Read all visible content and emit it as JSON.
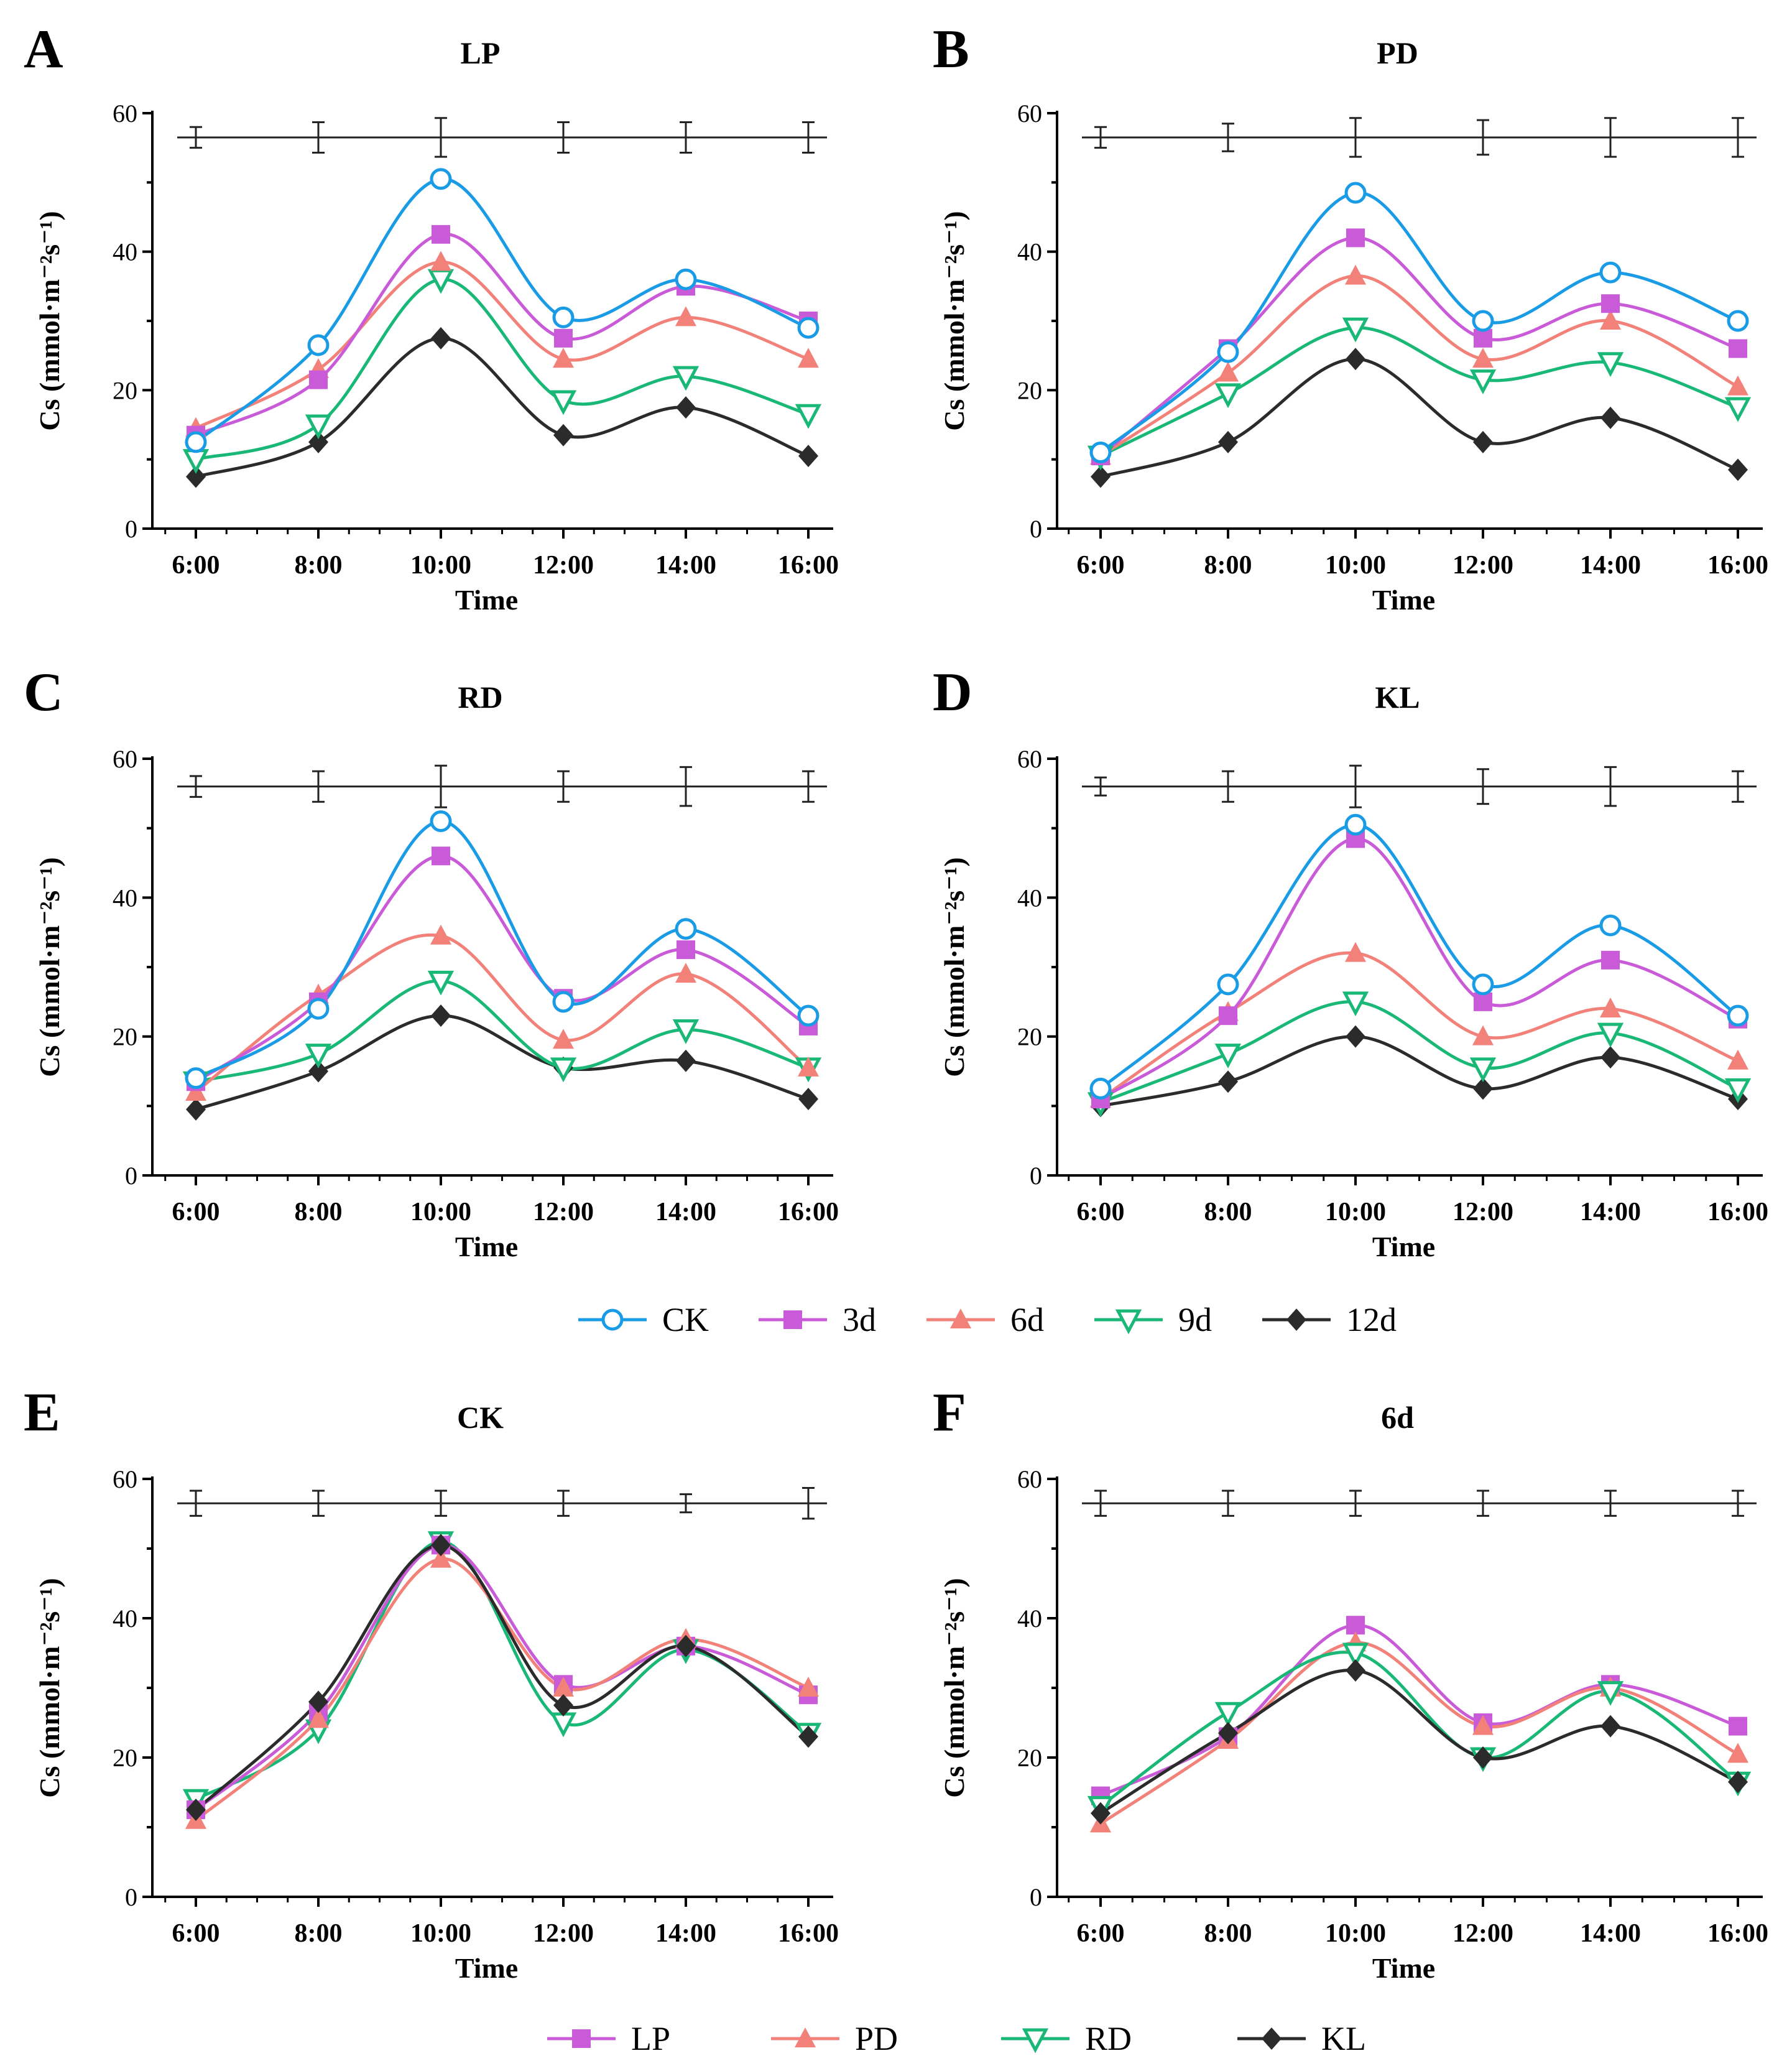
{
  "series_colors": {
    "CK": "#1a9be6",
    "3d": "#c95ad8",
    "6d": "#f2817a",
    "9d": "#19b877",
    "12d": "#2b2b2b",
    "LP": "#c95ad8",
    "PD": "#f2817a",
    "RD": "#19b877",
    "KL": "#2b2b2b",
    "axis": "#000000"
  },
  "series_markers": {
    "CK": "circle-open",
    "3d": "square",
    "6d": "triangle-up",
    "9d": "triangle-down-open",
    "12d": "diamond",
    "LP": "square",
    "PD": "triangle-up",
    "RD": "triangle-down-open",
    "KL": "diamond"
  },
  "legends": [
    {
      "entries": [
        "CK",
        "3d",
        "6d",
        "9d",
        "12d"
      ]
    },
    {
      "entries": [
        "LP",
        "PD",
        "RD",
        "KL"
      ]
    }
  ],
  "chart_data": [
    {
      "panel": "A",
      "type": "line",
      "title": "LP",
      "xlabel": "Time",
      "ylabel": "Cs (mmol·m⁻²s⁻¹)",
      "ylim": [
        0,
        60
      ],
      "yticks": [
        0,
        20,
        40,
        60
      ],
      "categories": [
        "6:00",
        "8:00",
        "10:00",
        "12:00",
        "14:00",
        "16:00"
      ],
      "series": [
        {
          "name": "CK",
          "values": [
            12.5,
            26.5,
            50.5,
            30.5,
            36.0,
            29.0
          ]
        },
        {
          "name": "3d",
          "values": [
            13.5,
            21.5,
            42.5,
            27.5,
            35.0,
            30.0
          ]
        },
        {
          "name": "6d",
          "values": [
            14.5,
            23.0,
            38.5,
            24.5,
            30.5,
            24.5
          ]
        },
        {
          "name": "9d",
          "values": [
            10.0,
            15.0,
            36.0,
            18.5,
            22.0,
            16.5
          ]
        },
        {
          "name": "12d",
          "values": [
            7.5,
            12.5,
            27.5,
            13.5,
            17.5,
            10.5
          ]
        }
      ],
      "error_bars": {
        "y": 56.5,
        "errors": [
          1.5,
          2.2,
          2.8,
          2.2,
          2.2,
          2.2
        ]
      }
    },
    {
      "panel": "B",
      "type": "line",
      "title": "PD",
      "xlabel": "Time",
      "ylabel": "Cs (mmol·m⁻²s⁻¹)",
      "ylim": [
        0,
        60
      ],
      "yticks": [
        0,
        20,
        40,
        60
      ],
      "categories": [
        "6:00",
        "8:00",
        "10:00",
        "12:00",
        "14:00",
        "16:00"
      ],
      "series": [
        {
          "name": "CK",
          "values": [
            11.0,
            25.5,
            48.5,
            30.0,
            37.0,
            30.0
          ]
        },
        {
          "name": "3d",
          "values": [
            10.5,
            26.0,
            42.0,
            27.5,
            32.5,
            26.0
          ]
        },
        {
          "name": "6d",
          "values": [
            10.5,
            22.5,
            36.5,
            24.5,
            30.0,
            20.5
          ]
        },
        {
          "name": "9d",
          "values": [
            10.5,
            19.5,
            29.0,
            21.5,
            24.0,
            17.5
          ]
        },
        {
          "name": "12d",
          "values": [
            7.5,
            12.5,
            24.5,
            12.5,
            16.0,
            8.5
          ]
        }
      ],
      "error_bars": {
        "y": 56.5,
        "errors": [
          1.5,
          2.0,
          2.8,
          2.5,
          2.8,
          2.8
        ]
      }
    },
    {
      "panel": "C",
      "type": "line",
      "title": "RD",
      "xlabel": "Time",
      "ylabel": "Cs (mmol·m⁻²s⁻¹)",
      "ylim": [
        0,
        60
      ],
      "yticks": [
        0,
        20,
        40,
        60
      ],
      "categories": [
        "6:00",
        "8:00",
        "10:00",
        "12:00",
        "14:00",
        "16:00"
      ],
      "series": [
        {
          "name": "CK",
          "values": [
            14.0,
            24.0,
            51.0,
            25.0,
            35.5,
            23.0
          ]
        },
        {
          "name": "3d",
          "values": [
            13.5,
            25.0,
            46.0,
            25.5,
            32.5,
            21.5
          ]
        },
        {
          "name": "6d",
          "values": [
            12.0,
            26.0,
            34.5,
            19.5,
            29.0,
            15.5
          ]
        },
        {
          "name": "9d",
          "values": [
            13.5,
            17.5,
            28.0,
            15.5,
            21.0,
            15.5
          ]
        },
        {
          "name": "12d",
          "values": [
            9.5,
            15.0,
            23.0,
            15.5,
            16.5,
            11.0
          ]
        }
      ],
      "error_bars": {
        "y": 56.0,
        "errors": [
          1.5,
          2.2,
          3.0,
          2.2,
          2.8,
          2.2
        ]
      }
    },
    {
      "panel": "D",
      "type": "line",
      "title": "KL",
      "xlabel": "Time",
      "ylabel": "Cs (mmol·m⁻²s⁻¹)",
      "ylim": [
        0,
        60
      ],
      "yticks": [
        0,
        20,
        40,
        60
      ],
      "categories": [
        "6:00",
        "8:00",
        "10:00",
        "12:00",
        "14:00",
        "16:00"
      ],
      "series": [
        {
          "name": "CK",
          "values": [
            12.5,
            27.5,
            50.5,
            27.5,
            36.0,
            23.0
          ]
        },
        {
          "name": "3d",
          "values": [
            11.0,
            23.0,
            48.5,
            25.0,
            31.0,
            22.5
          ]
        },
        {
          "name": "6d",
          "values": [
            11.0,
            23.5,
            32.0,
            20.0,
            24.0,
            16.5
          ]
        },
        {
          "name": "9d",
          "values": [
            10.5,
            17.5,
            25.0,
            15.5,
            20.5,
            12.5
          ]
        },
        {
          "name": "12d",
          "values": [
            10.0,
            13.5,
            20.0,
            12.5,
            17.0,
            11.0
          ]
        }
      ],
      "error_bars": {
        "y": 56.0,
        "errors": [
          1.3,
          2.2,
          3.0,
          2.5,
          2.8,
          2.2
        ]
      }
    },
    {
      "panel": "E",
      "type": "line",
      "title": "CK",
      "xlabel": "Time",
      "ylabel": "Cs (mmol·m⁻²s⁻¹)",
      "ylim": [
        0,
        60
      ],
      "yticks": [
        0,
        20,
        40,
        60
      ],
      "categories": [
        "6:00",
        "8:00",
        "10:00",
        "12:00",
        "14:00",
        "16:00"
      ],
      "series": [
        {
          "name": "KL",
          "values": [
            12.5,
            28.0,
            50.5,
            27.5,
            36.0,
            23.0
          ]
        },
        {
          "name": "PD",
          "values": [
            11.0,
            25.5,
            48.5,
            30.0,
            37.0,
            30.0
          ]
        },
        {
          "name": "LP",
          "values": [
            12.5,
            26.5,
            50.5,
            30.5,
            36.0,
            29.0
          ]
        },
        {
          "name": "RD",
          "values": [
            14.0,
            24.0,
            51.0,
            25.0,
            35.5,
            23.5
          ]
        }
      ],
      "error_bars": {
        "y": 56.5,
        "errors": [
          1.8,
          1.8,
          1.8,
          1.8,
          1.3,
          2.2
        ]
      }
    },
    {
      "panel": "F",
      "type": "line",
      "title": "6d",
      "xlabel": "Time",
      "ylabel": "Cs (mmol·m⁻²s⁻¹)",
      "ylim": [
        0,
        60
      ],
      "yticks": [
        0,
        20,
        40,
        60
      ],
      "categories": [
        "6:00",
        "8:00",
        "10:00",
        "12:00",
        "14:00",
        "16:00"
      ],
      "series": [
        {
          "name": "KL",
          "values": [
            12.0,
            23.5,
            32.5,
            20.0,
            24.5,
            16.5
          ]
        },
        {
          "name": "RD",
          "values": [
            13.0,
            26.5,
            35.0,
            20.0,
            29.5,
            16.5
          ]
        },
        {
          "name": "PD",
          "values": [
            10.5,
            22.5,
            36.5,
            24.5,
            30.0,
            20.5
          ]
        },
        {
          "name": "LP",
          "values": [
            14.5,
            23.0,
            39.0,
            25.0,
            30.5,
            24.5
          ]
        }
      ],
      "error_bars": {
        "y": 56.5,
        "errors": [
          1.8,
          1.8,
          1.8,
          1.8,
          1.8,
          1.8
        ]
      }
    }
  ]
}
